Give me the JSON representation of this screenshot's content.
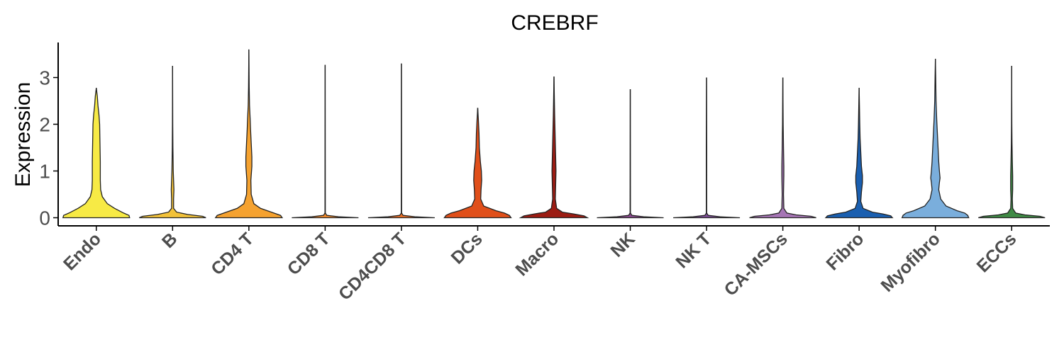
{
  "chart_data": {
    "type": "violin",
    "title": "CREBRF",
    "xlabel": "",
    "ylabel": "Expression",
    "ylim": [
      -0.2,
      3.8
    ],
    "yticks": [
      0,
      1,
      2,
      3
    ],
    "grid": false,
    "legend": "none",
    "categories": [
      "Endo",
      "B",
      "CD4 T",
      "CD8 T",
      "CD4CD8 T",
      "DCs",
      "Macro",
      "NK",
      "NK T",
      "CA-MSCs",
      "Fibro",
      "Myofibro",
      "ECCs"
    ],
    "series": [
      {
        "category": "Endo",
        "color": "#f7ea45",
        "max": 2.78,
        "density": [
          [
            0,
            1.0
          ],
          [
            0.05,
            0.98
          ],
          [
            0.1,
            0.82
          ],
          [
            0.2,
            0.55
          ],
          [
            0.3,
            0.33
          ],
          [
            0.45,
            0.18
          ],
          [
            0.6,
            0.13
          ],
          [
            0.8,
            0.12
          ],
          [
            1.0,
            0.12
          ],
          [
            1.2,
            0.12
          ],
          [
            1.4,
            0.115
          ],
          [
            1.6,
            0.11
          ],
          [
            1.8,
            0.105
          ],
          [
            2.0,
            0.1
          ],
          [
            2.2,
            0.08
          ],
          [
            2.4,
            0.05
          ],
          [
            2.6,
            0.03
          ],
          [
            2.78,
            0.0
          ]
        ]
      },
      {
        "category": "B",
        "color": "#f2c23a",
        "max": 3.25,
        "density": [
          [
            0,
            1.0
          ],
          [
            0.03,
            0.9
          ],
          [
            0.07,
            0.45
          ],
          [
            0.12,
            0.12
          ],
          [
            0.2,
            0.03
          ],
          [
            0.4,
            0.03
          ],
          [
            0.6,
            0.04
          ],
          [
            0.8,
            0.03
          ],
          [
            1.0,
            0.02
          ],
          [
            1.5,
            0.01
          ],
          [
            2.0,
            0.005
          ],
          [
            3.25,
            0.0
          ]
        ]
      },
      {
        "category": "CD4 T",
        "color": "#f5a230",
        "max": 3.6,
        "density": [
          [
            0,
            1.0
          ],
          [
            0.05,
            0.95
          ],
          [
            0.1,
            0.75
          ],
          [
            0.2,
            0.35
          ],
          [
            0.3,
            0.15
          ],
          [
            0.5,
            0.07
          ],
          [
            0.8,
            0.06
          ],
          [
            1.1,
            0.09
          ],
          [
            1.3,
            0.09
          ],
          [
            1.6,
            0.07
          ],
          [
            1.9,
            0.05
          ],
          [
            2.1,
            0.04
          ],
          [
            2.4,
            0.02
          ],
          [
            2.8,
            0.01
          ],
          [
            3.2,
            0.005
          ],
          [
            3.6,
            0.0
          ]
        ]
      },
      {
        "category": "CD8 T",
        "color": "#f28a2a",
        "max": 3.27,
        "density": [
          [
            0,
            1.0
          ],
          [
            0.02,
            0.4
          ],
          [
            0.05,
            0.05
          ],
          [
            0.1,
            0.005
          ],
          [
            3.27,
            0.0
          ]
        ]
      },
      {
        "category": "CD4CD8 T",
        "color": "#ec6f24",
        "max": 3.3,
        "density": [
          [
            0,
            1.0
          ],
          [
            0.02,
            0.4
          ],
          [
            0.05,
            0.05
          ],
          [
            0.1,
            0.005
          ],
          [
            3.3,
            0.0
          ]
        ]
      },
      {
        "category": "DCs",
        "color": "#e04f1a",
        "max": 2.35,
        "density": [
          [
            0,
            1.0
          ],
          [
            0.05,
            0.95
          ],
          [
            0.1,
            0.8
          ],
          [
            0.15,
            0.55
          ],
          [
            0.25,
            0.18
          ],
          [
            0.4,
            0.09
          ],
          [
            0.6,
            0.1
          ],
          [
            0.8,
            0.12
          ],
          [
            1.0,
            0.11
          ],
          [
            1.2,
            0.08
          ],
          [
            1.5,
            0.05
          ],
          [
            1.8,
            0.04
          ],
          [
            2.1,
            0.02
          ],
          [
            2.35,
            0.0
          ]
        ]
      },
      {
        "category": "Macro",
        "color": "#9c1c13",
        "max": 3.02,
        "density": [
          [
            0,
            1.0
          ],
          [
            0.04,
            0.9
          ],
          [
            0.08,
            0.6
          ],
          [
            0.12,
            0.25
          ],
          [
            0.2,
            0.08
          ],
          [
            0.4,
            0.04
          ],
          [
            0.7,
            0.05
          ],
          [
            1.0,
            0.06
          ],
          [
            1.3,
            0.05
          ],
          [
            1.6,
            0.04
          ],
          [
            1.9,
            0.03
          ],
          [
            2.2,
            0.02
          ],
          [
            2.6,
            0.01
          ],
          [
            3.02,
            0.0
          ]
        ]
      },
      {
        "category": "NK",
        "color": "#8a4a8e",
        "max": 2.75,
        "density": [
          [
            0,
            1.0
          ],
          [
            0.02,
            0.4
          ],
          [
            0.05,
            0.05
          ],
          [
            0.1,
            0.005
          ],
          [
            2.75,
            0.0
          ]
        ]
      },
      {
        "category": "NK T",
        "color": "#7b4d94",
        "max": 3.0,
        "density": [
          [
            0,
            1.0
          ],
          [
            0.02,
            0.4
          ],
          [
            0.05,
            0.05
          ],
          [
            0.1,
            0.005
          ],
          [
            1.5,
            0.006
          ],
          [
            2.0,
            0.004
          ],
          [
            3.0,
            0.0
          ]
        ]
      },
      {
        "category": "CA-MSCs",
        "color": "#a675b5",
        "max": 3.0,
        "density": [
          [
            0,
            1.0
          ],
          [
            0.03,
            0.85
          ],
          [
            0.06,
            0.4
          ],
          [
            0.1,
            0.12
          ],
          [
            0.2,
            0.03
          ],
          [
            0.5,
            0.02
          ],
          [
            0.9,
            0.03
          ],
          [
            1.1,
            0.03
          ],
          [
            1.5,
            0.02
          ],
          [
            2.0,
            0.01
          ],
          [
            3.0,
            0.0
          ]
        ]
      },
      {
        "category": "Fibro",
        "color": "#1a5fb0",
        "max": 2.78,
        "density": [
          [
            0,
            1.0
          ],
          [
            0.04,
            0.95
          ],
          [
            0.08,
            0.72
          ],
          [
            0.12,
            0.4
          ],
          [
            0.2,
            0.12
          ],
          [
            0.35,
            0.05
          ],
          [
            0.55,
            0.07
          ],
          [
            0.75,
            0.1
          ],
          [
            0.9,
            0.1
          ],
          [
            1.1,
            0.07
          ],
          [
            1.4,
            0.05
          ],
          [
            1.7,
            0.03
          ],
          [
            2.0,
            0.02
          ],
          [
            2.4,
            0.01
          ],
          [
            2.78,
            0.0
          ]
        ]
      },
      {
        "category": "Myofibro",
        "color": "#7aaedc",
        "max": 3.4,
        "density": [
          [
            0,
            1.0
          ],
          [
            0.05,
            0.97
          ],
          [
            0.1,
            0.88
          ],
          [
            0.15,
            0.65
          ],
          [
            0.25,
            0.32
          ],
          [
            0.4,
            0.16
          ],
          [
            0.6,
            0.1
          ],
          [
            0.75,
            0.12
          ],
          [
            0.85,
            0.14
          ],
          [
            1.0,
            0.12
          ],
          [
            1.2,
            0.1
          ],
          [
            1.5,
            0.08
          ],
          [
            1.8,
            0.06
          ],
          [
            2.1,
            0.04
          ],
          [
            2.5,
            0.02
          ],
          [
            3.0,
            0.01
          ],
          [
            3.4,
            0.0
          ]
        ]
      },
      {
        "category": "ECCs",
        "color": "#3f8a45",
        "max": 3.25,
        "density": [
          [
            0,
            1.0
          ],
          [
            0.03,
            0.85
          ],
          [
            0.06,
            0.4
          ],
          [
            0.1,
            0.12
          ],
          [
            0.2,
            0.03
          ],
          [
            0.4,
            0.02
          ],
          [
            0.6,
            0.03
          ],
          [
            0.9,
            0.03
          ],
          [
            1.2,
            0.02
          ],
          [
            1.6,
            0.01
          ],
          [
            2.0,
            0.005
          ],
          [
            3.25,
            0.0
          ]
        ]
      }
    ]
  }
}
